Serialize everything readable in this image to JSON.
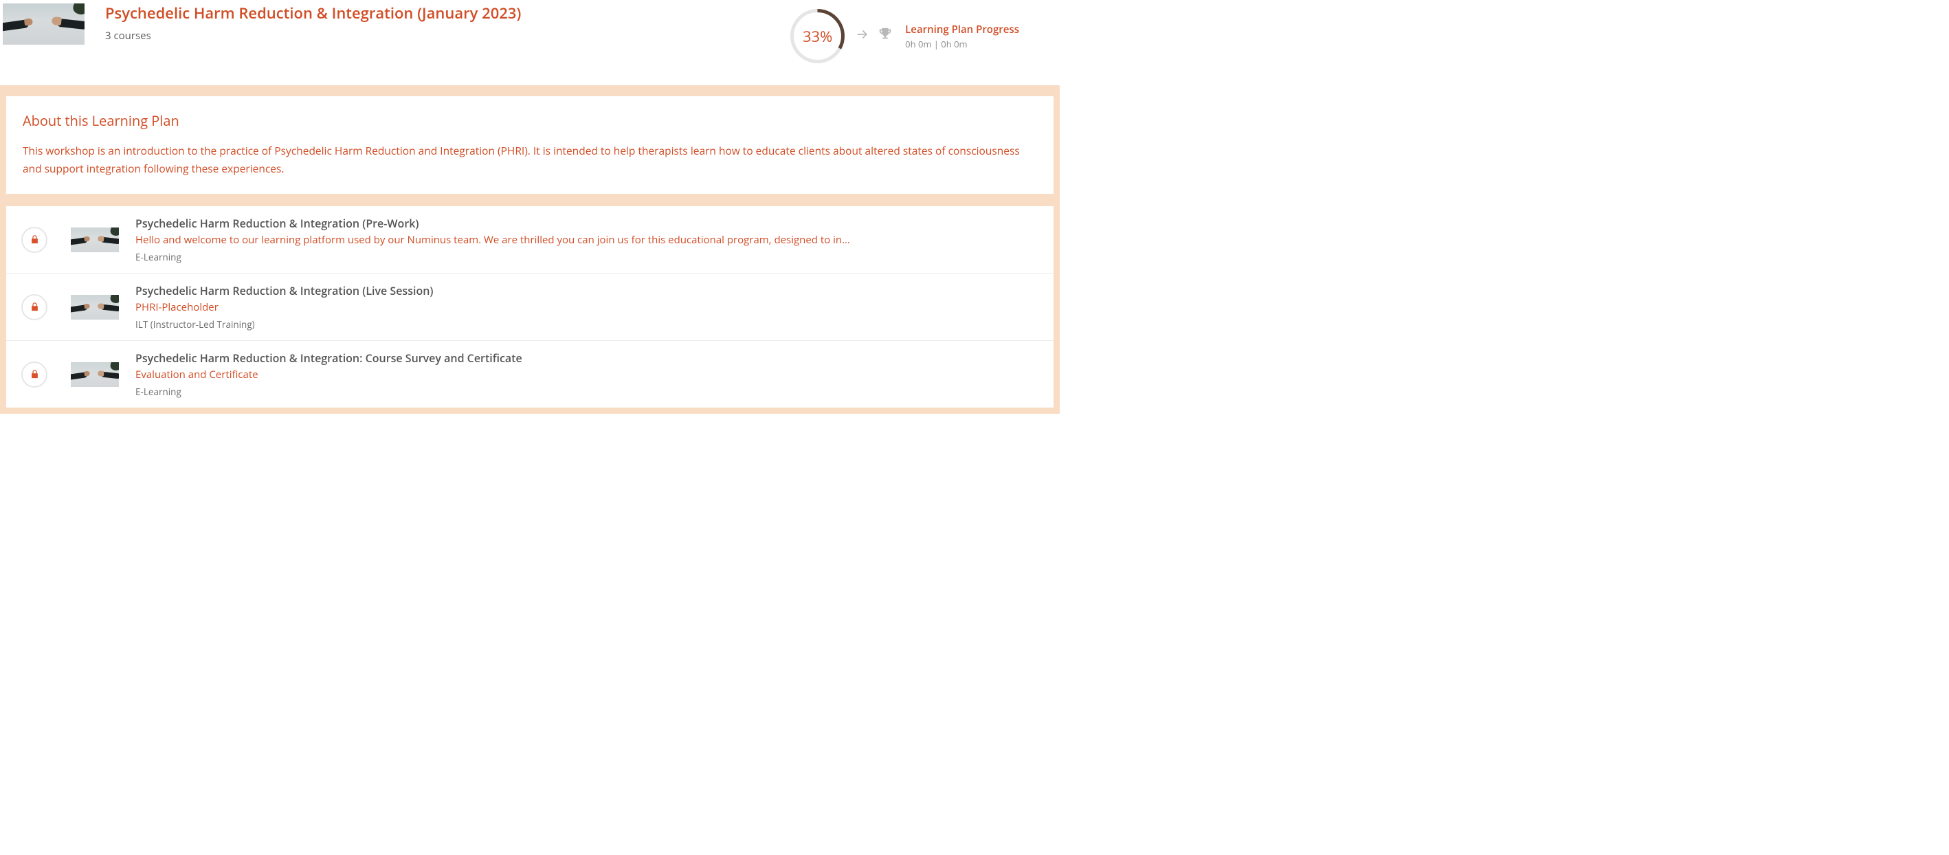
{
  "header": {
    "title": "Psychedelic Harm Reduction & Integration (January 2023)",
    "subtitle": "3 courses",
    "progress": {
      "percent": 33,
      "percent_label": "33%",
      "ring_bg": "#e5e5e5",
      "ring_fg": "#5b4436",
      "title": "Learning Plan Progress",
      "time": "0h 0m | 0h 0m"
    }
  },
  "about": {
    "title": "About this Learning Plan",
    "description": "This workshop is an introduction to the practice of Psychedelic Harm Reduction and Integration (PHRI). It is intended to help therapists learn how to educate clients about altered states of consciousness and support integration following these experiences."
  },
  "courses": [
    {
      "locked": true,
      "title": "Psychedelic Harm Reduction & Integration (Pre-Work)",
      "description": "Hello and welcome to our learning platform used by our Numinus team. We are thrilled you can join us for this educational program, designed to in…",
      "type": "E-Learning"
    },
    {
      "locked": true,
      "title": "Psychedelic Harm Reduction & Integration (Live Session)",
      "description": "PHRI-Placeholder",
      "type": "ILT (Instructor-Led Training)"
    },
    {
      "locked": true,
      "title": "Psychedelic Harm Reduction & Integration: Course Survey and Certificate",
      "description": "Evaluation and Certificate",
      "type": "E-Learning"
    }
  ],
  "colors": {
    "accent": "#d14d25",
    "body_bg": "#f8dcc4",
    "muted": "#8a8a8a"
  }
}
